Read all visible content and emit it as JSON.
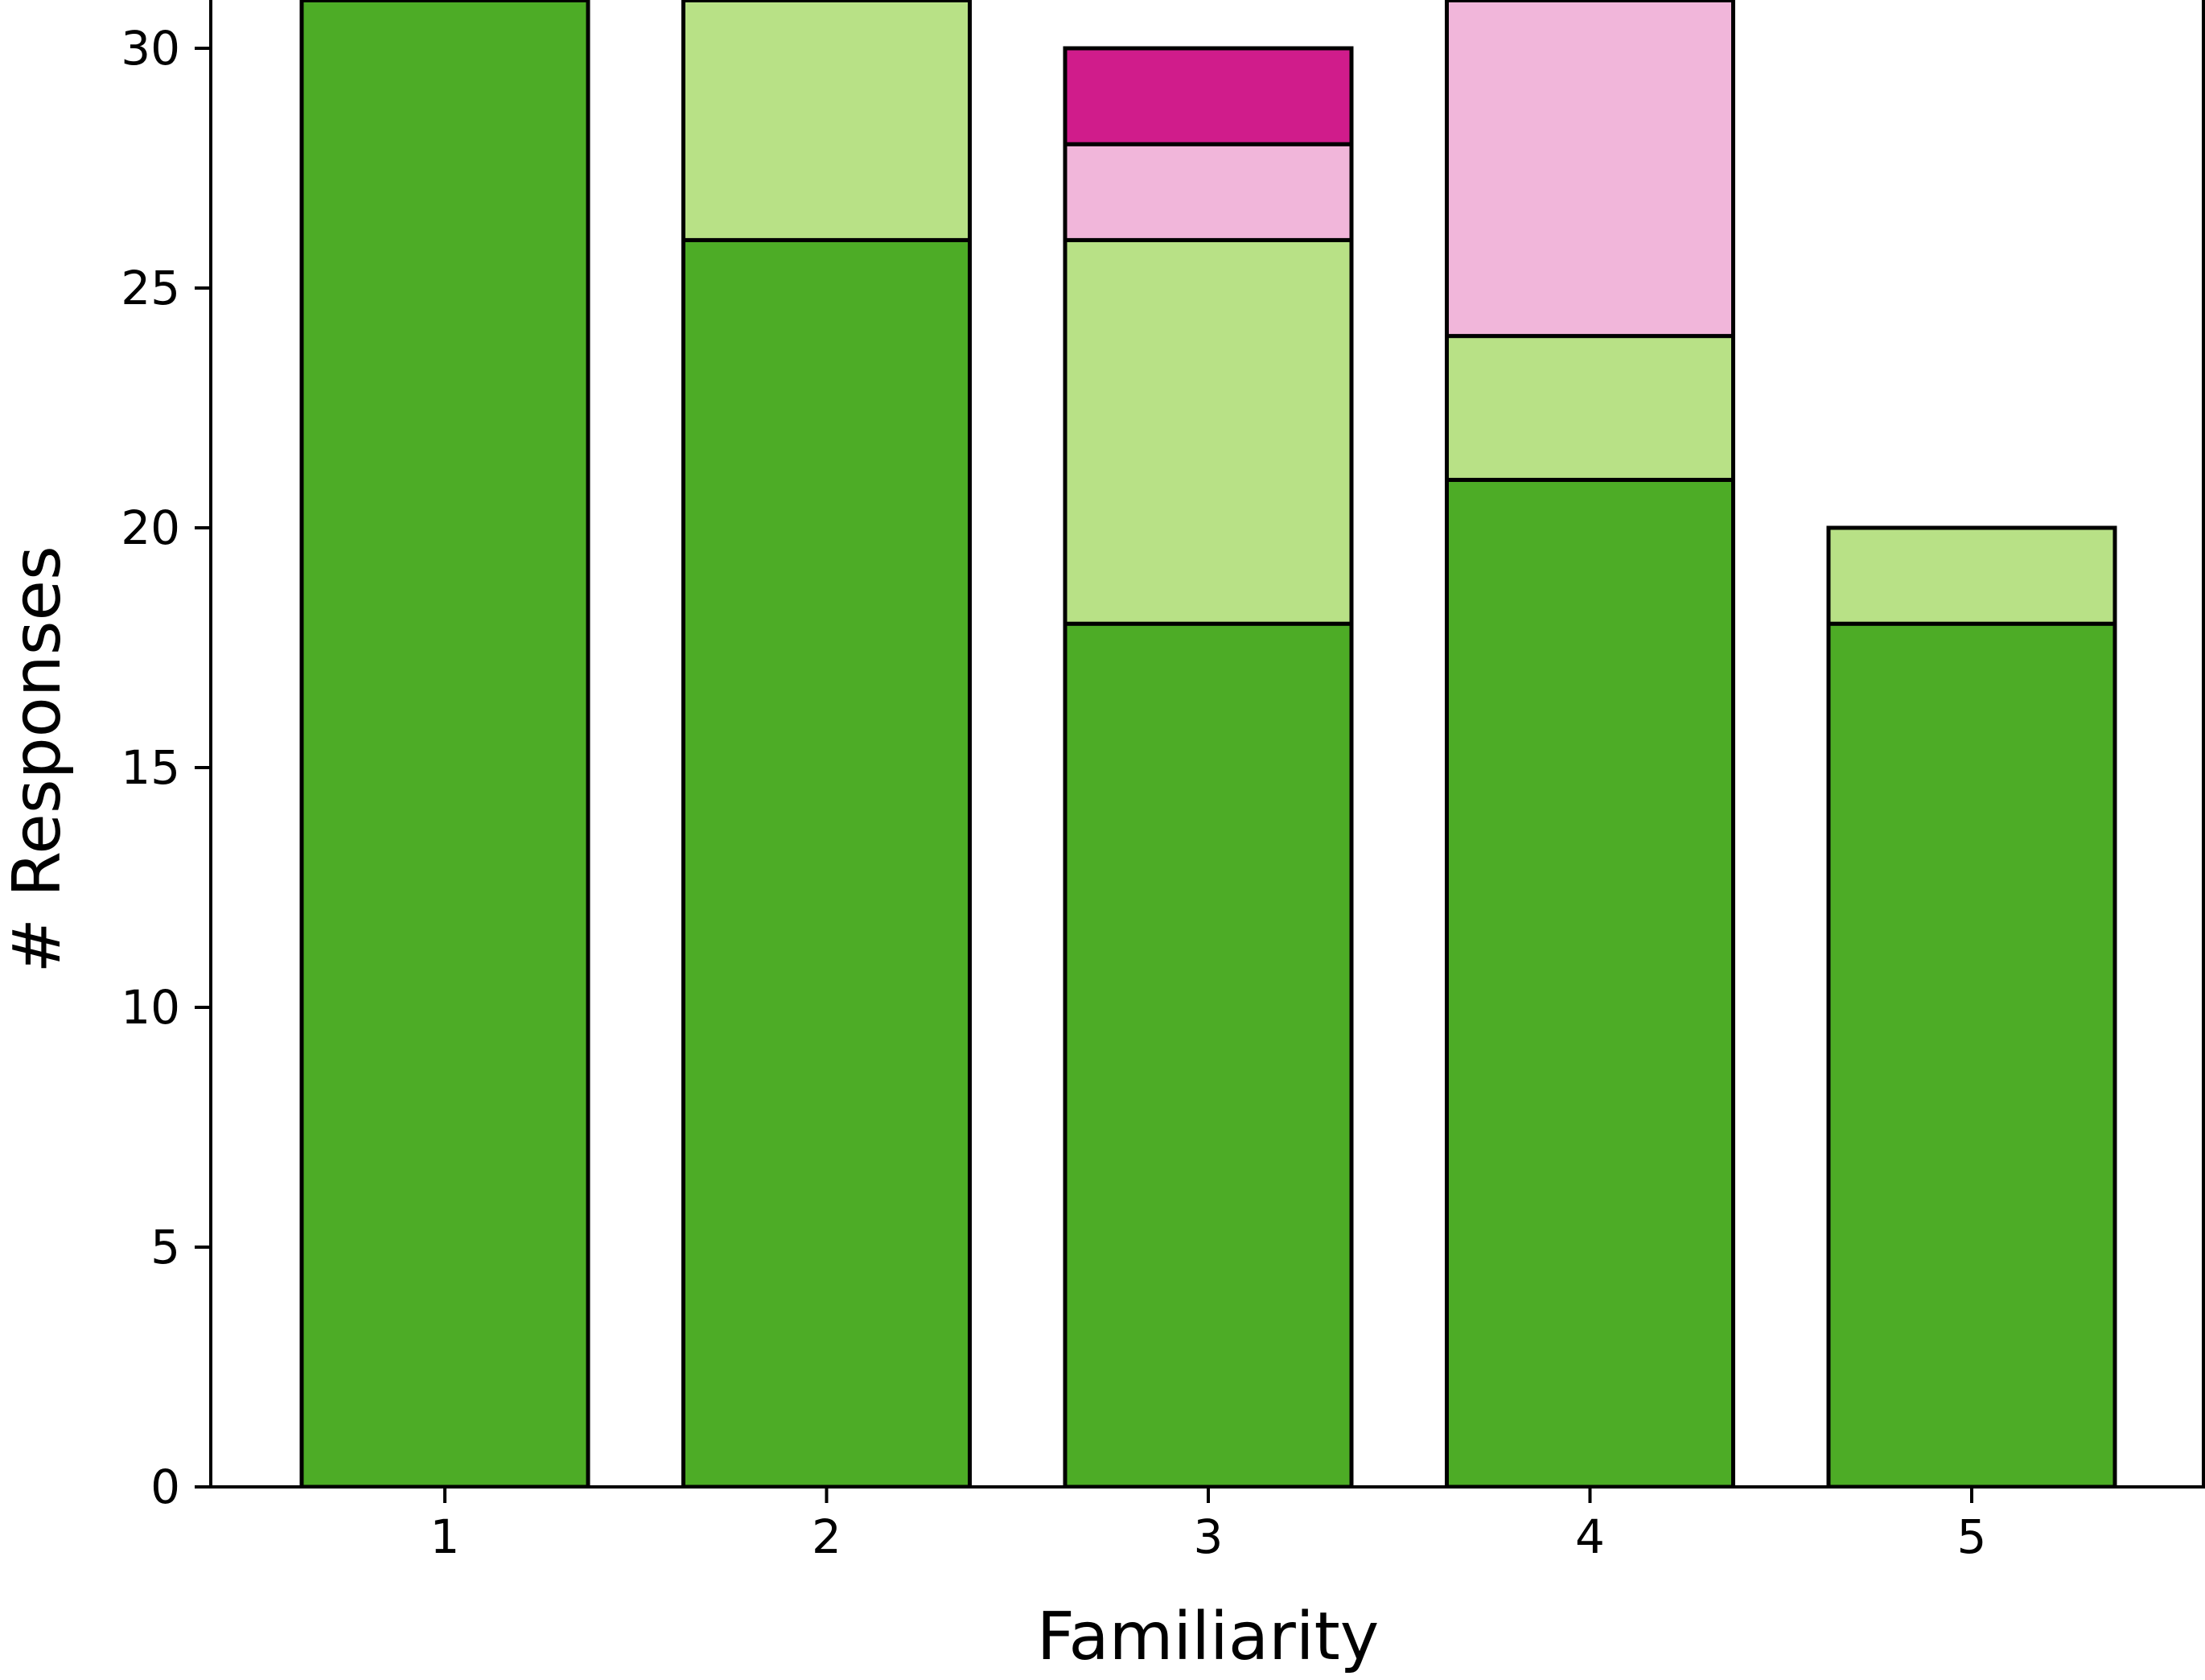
{
  "chart_data": {
    "type": "bar",
    "stacked": true,
    "title": "",
    "xlabel": "Familiarity",
    "ylabel": "# Responses",
    "categories": [
      "1",
      "2",
      "3",
      "4",
      "5"
    ],
    "ylim": [
      0,
      30.7
    ],
    "yticks": [
      0,
      5,
      10,
      15,
      20,
      25,
      30
    ],
    "grid": false,
    "legend": "none",
    "series": [
      {
        "color": "#4dac26",
        "values": [
          31,
          26,
          18,
          21,
          18
        ]
      },
      {
        "color": "#b8e186",
        "values": [
          0,
          5,
          8,
          3,
          2
        ]
      },
      {
        "color": "#f1b6da",
        "values": [
          0,
          0,
          2,
          7,
          0
        ]
      },
      {
        "color": "#d01c8b",
        "values": [
          0,
          0,
          2,
          0,
          0
        ]
      }
    ]
  }
}
